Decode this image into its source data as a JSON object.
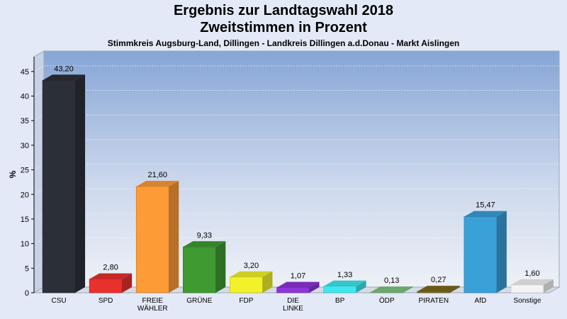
{
  "chart_data": {
    "type": "bar",
    "title": "Ergebnis zur Landtagswahl 2018",
    "subtitle": "Zweitstimmen in Prozent",
    "caption": "Stimmkreis Augsburg-Land, Dillingen - Landkreis Dillingen a.d.Donau - Markt Aislingen",
    "ylabel": "%",
    "ylim": [
      0,
      48
    ],
    "yticks": [
      0,
      5,
      10,
      15,
      20,
      25,
      30,
      35,
      40,
      45
    ],
    "grid": true,
    "categories": [
      {
        "label": [
          "CSU"
        ],
        "value": 43.2,
        "value_label": "43,20",
        "color": "#2b2f38"
      },
      {
        "label": [
          "SPD"
        ],
        "value": 2.8,
        "value_label": "2,80",
        "color": "#e8302d"
      },
      {
        "label": [
          "FREIE",
          "WÄHLER"
        ],
        "value": 21.6,
        "value_label": "21,60",
        "color": "#fd9b36"
      },
      {
        "label": [
          "GRÜNE"
        ],
        "value": 9.33,
        "value_label": "9,33",
        "color": "#3f9a32"
      },
      {
        "label": [
          "FDP"
        ],
        "value": 3.2,
        "value_label": "3,20",
        "color": "#f2f22a"
      },
      {
        "label": [
          "DIE",
          "LINKE"
        ],
        "value": 1.07,
        "value_label": "1,07",
        "color": "#8e35d8"
      },
      {
        "label": [
          "BP"
        ],
        "value": 1.33,
        "value_label": "1,33",
        "color": "#3ee8ee"
      },
      {
        "label": [
          "ÖDP"
        ],
        "value": 0.13,
        "value_label": "0,13",
        "color": "#7fc57f"
      },
      {
        "label": [
          "PIRATEN"
        ],
        "value": 0.27,
        "value_label": "0,27",
        "color": "#7d6a1f"
      },
      {
        "label": [
          "AfD"
        ],
        "value": 15.47,
        "value_label": "15,47",
        "color": "#3aa0d8"
      },
      {
        "label": [
          "Sonstige"
        ],
        "value": 1.6,
        "value_label": "1,60",
        "color": "#f4f4f4"
      }
    ]
  }
}
